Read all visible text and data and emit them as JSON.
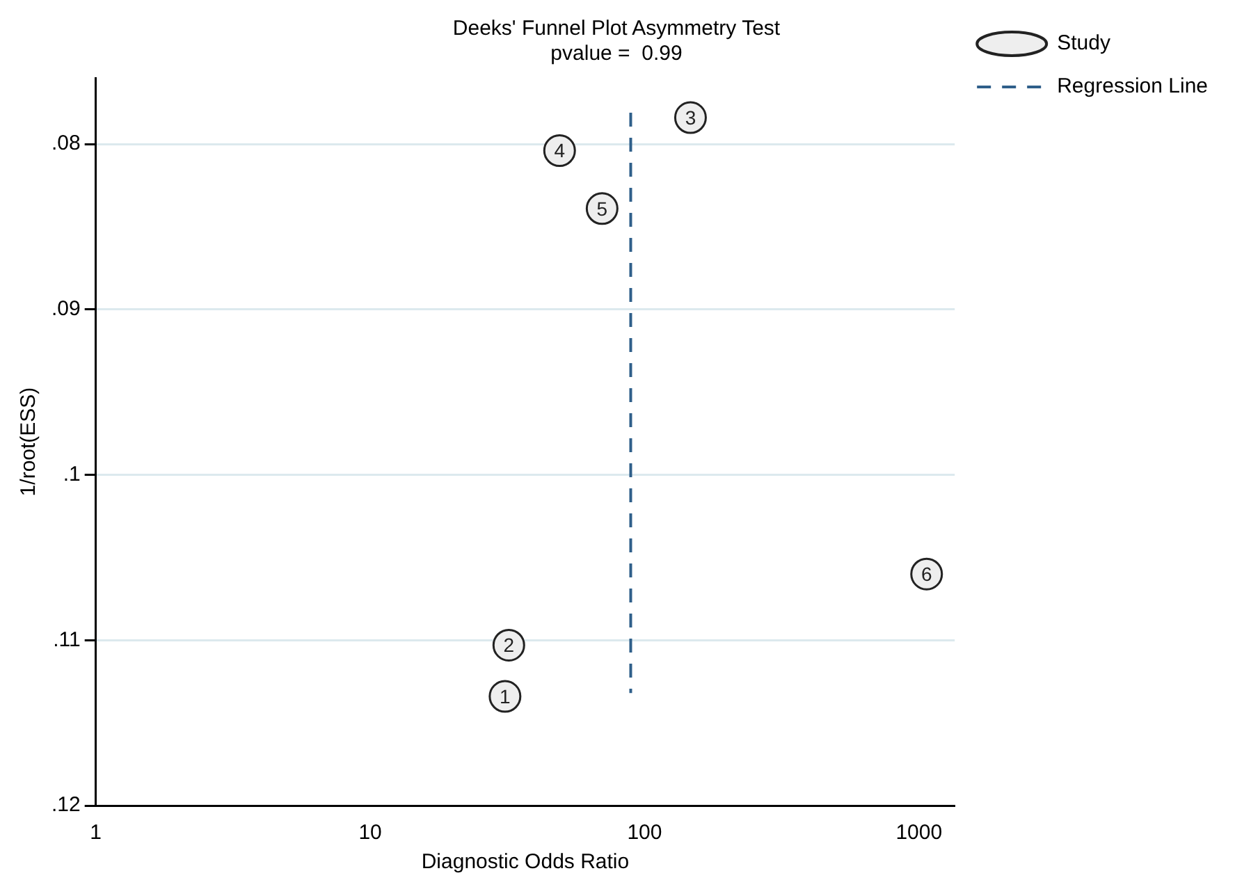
{
  "chart_data": {
    "type": "scatter",
    "title": "Deeks' Funnel Plot Asymmetry Test",
    "subtitle": "pvalue =  0.99",
    "xlabel": "Diagnostic Odds Ratio",
    "ylabel": "1/root(ESS)",
    "series": [
      {
        "name": "Study",
        "color": "#eeeeee",
        "marker": "circle",
        "x": [
          31,
          32,
          147,
          49,
          70,
          1066
        ],
        "values": [
          0.1134,
          0.1103,
          0.0784,
          0.0804,
          0.0839,
          0.106
        ]
      },
      {
        "name": "Regression Line",
        "type": "line",
        "color": "#2f5f8a",
        "line_style": "dashed",
        "marker": "none",
        "x": [
          89,
          89
        ],
        "values": [
          0.0781,
          0.1132
        ]
      }
    ],
    "annotations": [
      {
        "text": "1",
        "x": 31,
        "y": 0.1134
      },
      {
        "text": "2",
        "x": 32,
        "y": 0.1103
      },
      {
        "text": "3",
        "x": 147,
        "y": 0.0784
      },
      {
        "text": "4",
        "x": 49,
        "y": 0.0804
      },
      {
        "text": "5",
        "x": 70,
        "y": 0.0839
      },
      {
        "text": "6",
        "x": 1066,
        "y": 0.106
      }
    ],
    "log": "x",
    "xlim": [
      1,
      1350
    ],
    "xticks": [
      1,
      10,
      100,
      1000
    ],
    "ylim": [
      0.12,
      0.076
    ],
    "yticks": [
      {
        "value": 0.08,
        "label": ".08"
      },
      {
        "value": 0.09,
        "label": ".09"
      },
      {
        "value": 0.1,
        "label": ".1"
      },
      {
        "value": 0.11,
        "label": ".11"
      },
      {
        "value": 0.12,
        "label": ".12"
      }
    ],
    "grid": "y",
    "legend": "top right"
  }
}
